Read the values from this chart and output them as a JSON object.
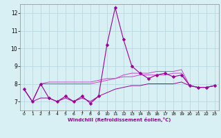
{
  "xlabel": "Windchill (Refroidissement éolien,°C)",
  "x": [
    0,
    1,
    2,
    3,
    4,
    5,
    6,
    7,
    8,
    9,
    10,
    11,
    12,
    13,
    14,
    15,
    16,
    17,
    18,
    19,
    20,
    21,
    22,
    23
  ],
  "line1": [
    7.7,
    7.0,
    8.0,
    7.2,
    7.0,
    7.3,
    7.0,
    7.3,
    6.9,
    7.3,
    10.2,
    12.3,
    10.5,
    9.0,
    8.6,
    8.3,
    8.5,
    8.6,
    8.4,
    8.5,
    7.9,
    7.8,
    7.8,
    7.9
  ],
  "line2": [
    7.7,
    7.0,
    8.0,
    8.1,
    8.1,
    8.1,
    8.1,
    8.1,
    8.1,
    8.2,
    8.3,
    8.3,
    8.4,
    8.4,
    8.5,
    8.5,
    8.5,
    8.5,
    8.6,
    8.6,
    7.9,
    7.8,
    7.8,
    7.9
  ],
  "line3": [
    7.7,
    7.0,
    8.0,
    8.0,
    8.0,
    8.0,
    8.0,
    8.0,
    8.0,
    8.1,
    8.2,
    8.3,
    8.5,
    8.6,
    8.6,
    8.6,
    8.7,
    8.7,
    8.7,
    8.8,
    7.9,
    7.8,
    7.8,
    7.9
  ],
  "line4": [
    7.7,
    7.0,
    7.2,
    7.2,
    7.0,
    7.2,
    7.0,
    7.2,
    7.0,
    7.3,
    7.5,
    7.7,
    7.8,
    7.9,
    7.9,
    8.0,
    8.0,
    8.0,
    8.0,
    8.1,
    7.9,
    7.8,
    7.8,
    7.9
  ],
  "line_color1": "#990099",
  "line_color2": "#cc44cc",
  "line_color4": "#990099",
  "bg_color": "#d8eff4",
  "grid_color": "#b0d4e0",
  "ylim": [
    6.5,
    12.5
  ],
  "yticks": [
    7,
    8,
    9,
    10,
    11,
    12
  ],
  "marker": "D",
  "marker_size": 2.5
}
